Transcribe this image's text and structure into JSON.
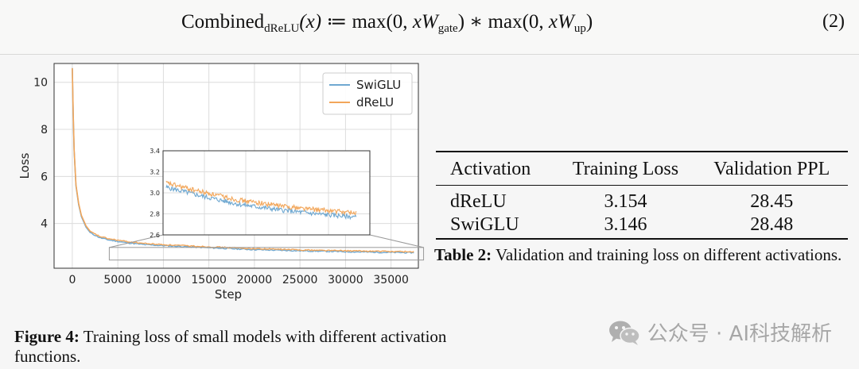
{
  "equation": {
    "lhs_name": "Combined",
    "lhs_sub": "dReLU",
    "lhs_arg": "(x)",
    "assign": "≔",
    "term1_pre": "max(0,",
    "term1_var": "xW",
    "term1_sub": "gate",
    "term1_post": ")",
    "times": "∗",
    "term2_pre": "max(0,",
    "term2_var": "xW",
    "term2_sub": "up",
    "term2_post": ")",
    "number": "(2)"
  },
  "chart_data": {
    "type": "line",
    "xlabel": "Step",
    "ylabel": "Loss",
    "xlim": [
      -2000,
      38000
    ],
    "ylim": [
      2.1,
      10.8
    ],
    "xticks": [
      0,
      5000,
      10000,
      15000,
      20000,
      25000,
      30000,
      35000
    ],
    "yticks": [
      4,
      6,
      8,
      10
    ],
    "grid": true,
    "legend_position": "top-right",
    "series": [
      {
        "name": "SwiGLU",
        "color": "#6fa8d1",
        "x": [
          0,
          100,
          200,
          400,
          700,
          1000,
          1500,
          2000,
          3000,
          4000,
          6000,
          8000,
          10000,
          15000,
          20000,
          25000,
          30000,
          35000,
          37500
        ],
        "y": [
          10.6,
          8.7,
          7.1,
          5.6,
          4.8,
          4.3,
          3.85,
          3.6,
          3.4,
          3.3,
          3.18,
          3.1,
          3.06,
          2.97,
          2.89,
          2.84,
          2.8,
          2.77,
          2.76
        ]
      },
      {
        "name": "dReLU",
        "color": "#f2a65a",
        "x": [
          0,
          100,
          200,
          400,
          700,
          1000,
          1500,
          2000,
          3000,
          4000,
          6000,
          8000,
          10000,
          15000,
          20000,
          25000,
          30000,
          35000,
          37500
        ],
        "y": [
          10.6,
          8.75,
          7.15,
          5.65,
          4.85,
          4.35,
          3.9,
          3.65,
          3.45,
          3.35,
          3.23,
          3.15,
          3.1,
          3.01,
          2.93,
          2.88,
          2.84,
          2.81,
          2.8
        ]
      }
    ],
    "inset": {
      "xlim": [
        10000,
        37000
      ],
      "ylim": [
        2.6,
        3.4
      ],
      "yticks": [
        2.6,
        2.8,
        3.0,
        3.2,
        3.4
      ],
      "ytick_labels": [
        "2.6",
        "2.8",
        "3.0",
        "3.2",
        "3.4"
      ]
    }
  },
  "figure_caption": {
    "label": "Figure 4:",
    "text": " Training loss of small models with different activation functions."
  },
  "table": {
    "headers": [
      "Activation",
      "Training Loss",
      "Validation PPL"
    ],
    "rows": [
      [
        "dReLU",
        "3.154",
        "28.45"
      ],
      [
        "SwiGLU",
        "3.146",
        "28.48"
      ]
    ]
  },
  "table_caption": {
    "label": "Table 2:",
    "text": " Validation and training loss on different activations."
  },
  "watermark": {
    "text": "公众号 · AI科技解析",
    "icon": "wechat-icon"
  }
}
